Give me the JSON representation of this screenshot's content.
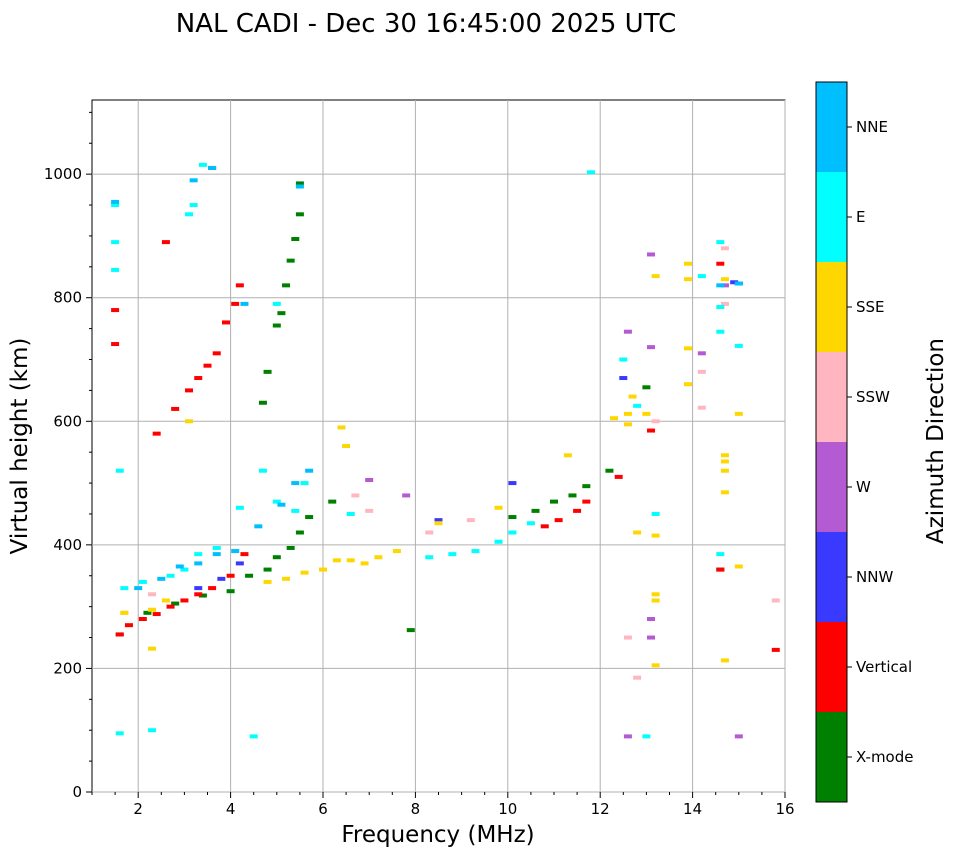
{
  "chart_data": {
    "type": "scatter",
    "title": "NAL CADI - Dec 30 16:45:00 2025 UTC",
    "xlabel": "Frequency (MHz)",
    "ylabel": "Virtual height (km)",
    "xlim": [
      1,
      16
    ],
    "ylim": [
      0,
      1120
    ],
    "xticks": [
      2,
      4,
      6,
      8,
      10,
      12,
      14,
      16
    ],
    "yticks": [
      0,
      200,
      400,
      600,
      800,
      1000
    ],
    "grid": true,
    "colorbar": {
      "label": "Azimuth Direction",
      "categories": [
        {
          "name": "X-mode",
          "color": "#008000"
        },
        {
          "name": "Vertical",
          "color": "#ff0000"
        },
        {
          "name": "NNW",
          "color": "#3a3aff"
        },
        {
          "name": "W",
          "color": "#b45ad2"
        },
        {
          "name": "SSW",
          "color": "#ffb6c1"
        },
        {
          "name": "SSE",
          "color": "#ffd700"
        },
        {
          "name": "E",
          "color": "#00ffff"
        },
        {
          "name": "NNE",
          "color": "#00bfff"
        }
      ]
    },
    "series": [
      {
        "name": "X-mode",
        "points": [
          [
            1.6,
            255
          ],
          [
            2.2,
            290
          ],
          [
            2.8,
            305
          ],
          [
            3.4,
            318
          ],
          [
            4.0,
            325
          ],
          [
            4.4,
            350
          ],
          [
            4.8,
            360
          ],
          [
            5.0,
            380
          ],
          [
            5.3,
            395
          ],
          [
            5.5,
            420
          ],
          [
            5.7,
            445
          ],
          [
            6.2,
            470
          ],
          [
            4.7,
            630
          ],
          [
            4.8,
            680
          ],
          [
            5.0,
            755
          ],
          [
            5.1,
            775
          ],
          [
            5.2,
            820
          ],
          [
            5.3,
            860
          ],
          [
            5.4,
            895
          ],
          [
            5.5,
            935
          ],
          [
            5.5,
            985
          ],
          [
            7.9,
            262
          ],
          [
            10.1,
            445
          ],
          [
            10.6,
            455
          ],
          [
            11.0,
            470
          ],
          [
            11.4,
            480
          ],
          [
            11.7,
            495
          ],
          [
            12.2,
            520
          ],
          [
            13.0,
            655
          ],
          [
            14.6,
            360
          ]
        ]
      },
      {
        "name": "Vertical",
        "points": [
          [
            1.5,
            780
          ],
          [
            1.5,
            725
          ],
          [
            1.6,
            255
          ],
          [
            1.8,
            270
          ],
          [
            2.1,
            280
          ],
          [
            2.4,
            288
          ],
          [
            2.7,
            300
          ],
          [
            3.0,
            310
          ],
          [
            3.3,
            320
          ],
          [
            3.6,
            330
          ],
          [
            4.0,
            350
          ],
          [
            4.3,
            385
          ],
          [
            2.4,
            580
          ],
          [
            2.8,
            620
          ],
          [
            3.1,
            650
          ],
          [
            3.3,
            670
          ],
          [
            3.5,
            690
          ],
          [
            3.7,
            710
          ],
          [
            3.9,
            760
          ],
          [
            4.1,
            790
          ],
          [
            4.2,
            820
          ],
          [
            2.6,
            890
          ],
          [
            3.6,
            1010
          ],
          [
            10.8,
            430
          ],
          [
            11.1,
            440
          ],
          [
            11.5,
            455
          ],
          [
            11.7,
            470
          ],
          [
            12.4,
            510
          ],
          [
            13.1,
            585
          ],
          [
            14.6,
            855
          ],
          [
            14.6,
            360
          ],
          [
            15.8,
            230
          ]
        ]
      },
      {
        "name": "NNW",
        "points": [
          [
            3.3,
            330
          ],
          [
            3.8,
            345
          ],
          [
            4.2,
            370
          ],
          [
            8.5,
            440
          ],
          [
            10.1,
            500
          ],
          [
            12.5,
            670
          ],
          [
            14.9,
            825
          ],
          [
            15.0,
            823
          ]
        ]
      },
      {
        "name": "W",
        "points": [
          [
            7.0,
            505
          ],
          [
            7.8,
            480
          ],
          [
            12.6,
            745
          ],
          [
            12.6,
            90
          ],
          [
            13.1,
            870
          ],
          [
            13.1,
            720
          ],
          [
            13.1,
            250
          ],
          [
            13.1,
            280
          ],
          [
            14.2,
            710
          ],
          [
            14.7,
            820
          ],
          [
            15.0,
            90
          ]
        ]
      },
      {
        "name": "SSW",
        "points": [
          [
            1.7,
            290
          ],
          [
            2.3,
            320
          ],
          [
            6.7,
            480
          ],
          [
            7.0,
            455
          ],
          [
            8.3,
            420
          ],
          [
            9.2,
            440
          ],
          [
            12.6,
            250
          ],
          [
            12.8,
            185
          ],
          [
            13.2,
            600
          ],
          [
            14.2,
            680
          ],
          [
            14.2,
            622
          ],
          [
            14.7,
            790
          ],
          [
            14.7,
            880
          ],
          [
            15.8,
            310
          ]
        ]
      },
      {
        "name": "SSE",
        "points": [
          [
            1.7,
            290
          ],
          [
            2.3,
            295
          ],
          [
            2.3,
            232
          ],
          [
            2.6,
            310
          ],
          [
            3.1,
            600
          ],
          [
            4.8,
            340
          ],
          [
            5.2,
            345
          ],
          [
            5.6,
            355
          ],
          [
            6.0,
            360
          ],
          [
            6.3,
            375
          ],
          [
            6.6,
            375
          ],
          [
            6.9,
            370
          ],
          [
            7.2,
            380
          ],
          [
            7.6,
            390
          ],
          [
            6.4,
            590
          ],
          [
            6.5,
            560
          ],
          [
            8.5,
            435
          ],
          [
            9.8,
            460
          ],
          [
            11.3,
            545
          ],
          [
            12.3,
            605
          ],
          [
            12.6,
            612
          ],
          [
            12.6,
            595
          ],
          [
            12.7,
            640
          ],
          [
            12.8,
            420
          ],
          [
            13.0,
            612
          ],
          [
            13.2,
            835
          ],
          [
            13.2,
            320
          ],
          [
            13.2,
            310
          ],
          [
            13.2,
            415
          ],
          [
            13.2,
            205
          ],
          [
            13.9,
            855
          ],
          [
            13.9,
            830
          ],
          [
            13.9,
            718
          ],
          [
            13.9,
            660
          ],
          [
            14.7,
            830
          ],
          [
            14.7,
            545
          ],
          [
            14.7,
            535
          ],
          [
            14.7,
            520
          ],
          [
            14.7,
            485
          ],
          [
            14.7,
            213
          ],
          [
            15.0,
            612
          ],
          [
            15.0,
            365
          ]
        ]
      },
      {
        "name": "E",
        "points": [
          [
            1.5,
            950
          ],
          [
            1.5,
            890
          ],
          [
            1.5,
            845
          ],
          [
            1.6,
            520
          ],
          [
            1.6,
            95
          ],
          [
            2.3,
            100
          ],
          [
            1.7,
            330
          ],
          [
            2.1,
            340
          ],
          [
            2.7,
            350
          ],
          [
            3.0,
            360
          ],
          [
            3.3,
            385
          ],
          [
            3.7,
            395
          ],
          [
            4.2,
            460
          ],
          [
            4.5,
            90
          ],
          [
            4.7,
            520
          ],
          [
            5.0,
            470
          ],
          [
            5.4,
            455
          ],
          [
            5.6,
            500
          ],
          [
            6.6,
            450
          ],
          [
            8.3,
            380
          ],
          [
            8.8,
            385
          ],
          [
            9.3,
            390
          ],
          [
            9.8,
            405
          ],
          [
            10.1,
            420
          ],
          [
            10.5,
            435
          ],
          [
            3.1,
            935
          ],
          [
            3.2,
            950
          ],
          [
            3.4,
            1015
          ],
          [
            5.0,
            790
          ],
          [
            11.8,
            1003
          ],
          [
            12.5,
            700
          ],
          [
            12.8,
            625
          ],
          [
            13.0,
            90
          ],
          [
            13.2,
            450
          ],
          [
            14.2,
            835
          ],
          [
            14.6,
            890
          ],
          [
            14.6,
            785
          ],
          [
            14.6,
            745
          ],
          [
            14.6,
            385
          ],
          [
            15.0,
            722
          ]
        ]
      },
      {
        "name": "NNE",
        "points": [
          [
            1.5,
            955
          ],
          [
            2.0,
            330
          ],
          [
            2.5,
            345
          ],
          [
            2.9,
            365
          ],
          [
            3.3,
            370
          ],
          [
            3.7,
            385
          ],
          [
            4.1,
            390
          ],
          [
            4.6,
            430
          ],
          [
            5.1,
            465
          ],
          [
            5.4,
            500
          ],
          [
            5.7,
            520
          ],
          [
            3.2,
            990
          ],
          [
            3.6,
            1010
          ],
          [
            4.3,
            790
          ],
          [
            5.5,
            980
          ],
          [
            14.6,
            820
          ],
          [
            15.0,
            823
          ]
        ]
      }
    ]
  }
}
